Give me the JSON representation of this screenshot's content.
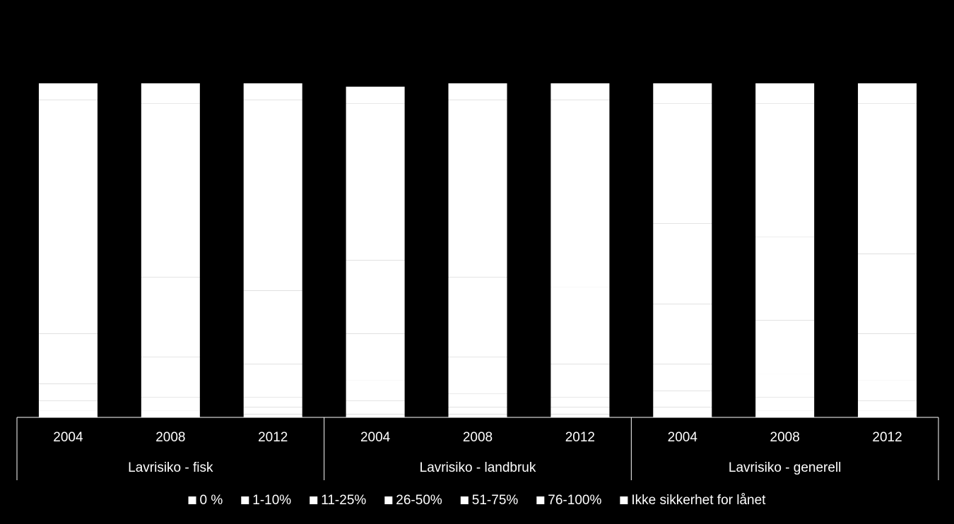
{
  "chart_data": {
    "type": "stacked_bar",
    "categories": [
      "2004",
      "2008",
      "2012",
      "2004",
      "2008",
      "2012",
      "2004",
      "2008",
      "2012"
    ],
    "groups": [
      "Lavrisiko - fisk",
      "Lavrisiko - landbruk",
      "Lavrisiko - generell"
    ],
    "series": [
      {
        "name": "0 %",
        "color": "#ffffff",
        "values": [
          2,
          0,
          1,
          1,
          1,
          1,
          3,
          2,
          2
        ]
      },
      {
        "name": "1-10%",
        "color": "#ffffff",
        "values": [
          3,
          2,
          2,
          4,
          2,
          2,
          5,
          4,
          3
        ]
      },
      {
        "name": "11-25%",
        "color": "#ffffff",
        "values": [
          5,
          4,
          3,
          6,
          4,
          3,
          8,
          7,
          6
        ]
      },
      {
        "name": "26-50%",
        "color": "#ffffff",
        "values": [
          15,
          12,
          10,
          14,
          11,
          10,
          18,
          16,
          14
        ]
      },
      {
        "name": "51-75%",
        "color": "#ffffff",
        "values": [
          25,
          24,
          22,
          22,
          24,
          23,
          24,
          25,
          24
        ]
      },
      {
        "name": "76-100%",
        "color": "#ffffff",
        "values": [
          45,
          52,
          57,
          47,
          53,
          56,
          36,
          40,
          45
        ]
      },
      {
        "name": "Ikke sikkerhet for lånet",
        "color": "#ffffff",
        "values": [
          5,
          6,
          5,
          5,
          5,
          5,
          6,
          6,
          6
        ]
      }
    ],
    "ylim": [
      0,
      100
    ],
    "legend": "bottom"
  }
}
